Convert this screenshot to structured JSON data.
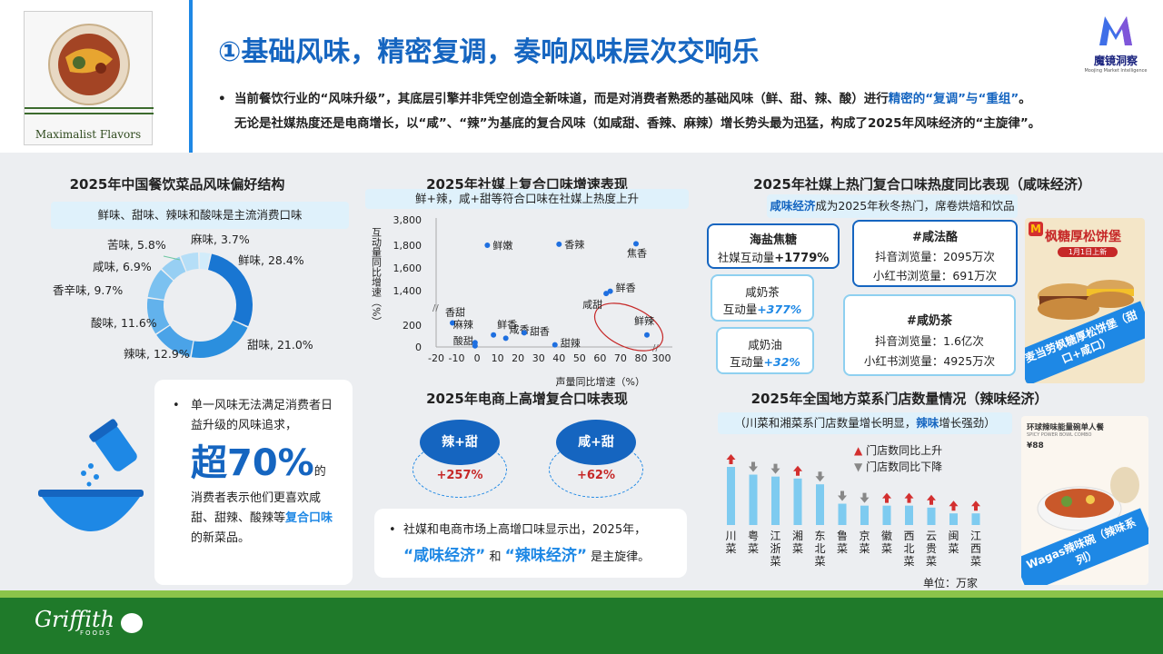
{
  "header": {
    "title": "①基础风味，精密复调，奏响风味层次交响乐",
    "logo_caption": "Maximalist Flavors",
    "brand_name": "魔镜洞察",
    "brand_sub": "Moojing Market Intelligence",
    "bullet_line1_pre": "当前餐饮行业的“风味升级”，其底层引擎并非凭空创造全新味道，而是对消费者熟悉的基础风味（鲜、甜、辣、酸）进行",
    "bullet_line1_hl": "精密的“复调”与“重组”",
    "bullet_line1_post": "。",
    "bullet_line2": "无论是社媒热度还是电商增长，以“咸”、“辣”为基底的复合风味（如咸甜、香辣、麻辣）增长势头最为迅猛，构成了2025年风味经济的“主旋律”。"
  },
  "colors": {
    "primary": "#1565c0",
    "accent": "#1e88e5",
    "light": "#dff1fb",
    "red": "#d32f2f",
    "gray": "#888888",
    "footer": "#1f7a2a"
  },
  "donut": {
    "title": "2025年中国餐饮菜品风味偏好结构",
    "note": "鲜味、甜味、辣味和酸味是主流消费口味"
  },
  "stat_box": {
    "text1": "单一风味无法满足消费者日益升级的风味追求，",
    "big": "超70%",
    "suffix": "的",
    "text2_pre": "消费者表示他们更喜欢咸甜、甜辣、酸辣等",
    "text2_hl": "复合口味",
    "text2_post": "的新菜品。"
  },
  "scatter": {
    "title": "2025年社媒上复合口味增速表现",
    "note": "鲜+辣，咸+甜等符合口味在社媒上热度上升",
    "ylabel": "互动量同比增速（%）",
    "xlabel": "声量同比增速（%）"
  },
  "ecommerce": {
    "title": "2025年电商上高增复合口味表现",
    "items": [
      {
        "label": "辣+甜",
        "value": "+257%"
      },
      {
        "label": "咸+甜",
        "value": "+62%"
      }
    ],
    "note_pre": "社媒和电商市场上高增口味显示出，2025年，",
    "note_hl1": "“咸味经济”",
    "note_mid": "和",
    "note_hl2": "“辣味经济”",
    "note_post": "是主旋律。"
  },
  "hot": {
    "title": "2025年社媒上热门复合口味热度同比表现（咸味经济）",
    "note_hl": "咸味经济",
    "note_rest": "成为2025年秋冬热门，席卷烘焙和饮品行业",
    "cards": [
      {
        "name": "海盐焦糖",
        "line": "社媒互动量",
        "value": "+1779%"
      },
      {
        "name": "咸奶茶",
        "line": "互动量",
        "value": "+377%"
      },
      {
        "name": "咸奶油",
        "line": "互动量",
        "value": "+32%"
      }
    ],
    "cheese": {
      "name": "#咸法酪",
      "l1": "抖音浏览量：2095万次",
      "l2": "小红书浏览量：691万次"
    },
    "tea": {
      "name": "#咸奶茶",
      "l1": "抖音浏览量：1.6亿次",
      "l2": "小红书浏览量：4925万次"
    },
    "promo": {
      "title": "枫糖厚松饼堡",
      "badge": "1月1日上新",
      "caption": "麦当劳枫糖厚松饼堡（甜口+咸口）"
    }
  },
  "stores": {
    "title": "2025年全国地方菜系门店数量情况（辣味经济）",
    "note_pre": "（川菜和湘菜系门店数量增长明显，",
    "note_hl": "辣味",
    "note_post": "增长强劲）",
    "legend_up": "门店数同比上升",
    "legend_down": "门店数同比下降",
    "unit": "单位：万家",
    "promo": {
      "top": "环球辣味能量碗单人餐",
      "top_en": "SPICY POWER BOWL COMBO",
      "price": "¥88",
      "caption": "Wagas辣味碗（辣味系列）"
    }
  },
  "footer": {
    "brand": "Griffith",
    "sub": "FOODS"
  },
  "chart_data": [
    {
      "type": "pie",
      "title": "2025年中国餐饮菜品风味偏好结构",
      "slices": [
        {
          "label": "鲜味",
          "value": 28.4,
          "text": "鲜味, 28.4%"
        },
        {
          "label": "甜味",
          "value": 21.0,
          "text": "甜味, 21.0%"
        },
        {
          "label": "辣味",
          "value": 12.9,
          "text": "辣味, 12.9%"
        },
        {
          "label": "酸味",
          "value": 11.6,
          "text": "酸味, 11.6%"
        },
        {
          "label": "香辛味",
          "value": 9.7,
          "text": "香辛味, 9.7%"
        },
        {
          "label": "咸味",
          "value": 6.9,
          "text": "咸味, 6.9%"
        },
        {
          "label": "苦味",
          "value": 5.8,
          "text": "苦味, 5.8%"
        },
        {
          "label": "麻味",
          "value": 3.7,
          "text": "麻味, 3.7%"
        }
      ]
    },
    {
      "type": "scatter",
      "title": "2025年社媒上复合口味增速表现",
      "xlabel": "声量同比增速（%）",
      "ylabel": "互动量同比增速（%）",
      "x_ticks": [
        "-20",
        "-10",
        "0",
        "10",
        "20",
        "30",
        "40",
        "50",
        "60",
        "70",
        "80",
        "300"
      ],
      "y_ticks": [
        "0",
        "200",
        "1,400",
        "1,600",
        "1,800",
        "3,800"
      ],
      "points": [
        {
          "label": "鲜嫩",
          "x": 5,
          "y": 1800
        },
        {
          "label": "香辣",
          "x": 40,
          "y": 1880
        },
        {
          "label": "焦香",
          "x": 75,
          "y": 1920
        },
        {
          "label": "鲜香",
          "x": 65,
          "y": 1380
        },
        {
          "label": "咸甜",
          "x": 63,
          "y": 1300
        },
        {
          "label": "鲜辣",
          "x": 80,
          "y": 110
        },
        {
          "label": "香甜",
          "x": -12,
          "y": 280
        },
        {
          "label": "麻辣",
          "x": -1,
          "y": 40
        },
        {
          "label": "鲜香",
          "x": 8,
          "y": 110
        },
        {
          "label": "酸甜",
          "x": -1,
          "y": 10
        },
        {
          "label": "咸香",
          "x": 14,
          "y": 80
        },
        {
          "label": "甜香",
          "x": 23,
          "y": 130
        },
        {
          "label": "甜辣",
          "x": 38,
          "y": 20
        }
      ]
    },
    {
      "type": "bar",
      "title": "2025年全国地方菜系门店数量情况（辣味经济）",
      "categories": [
        "川菜",
        "粤菜",
        "江浙菜",
        "湘菜",
        "东北菜",
        "鲁菜",
        "京菜",
        "徽菜",
        "西北菜",
        "云贵菜",
        "闽菜",
        "江西菜"
      ],
      "values": [
        30,
        26,
        25,
        24,
        21,
        11,
        10,
        10,
        10,
        9,
        6,
        6
      ],
      "trend": [
        "up",
        "down",
        "down",
        "up",
        "down",
        "down",
        "down",
        "up",
        "up",
        "up",
        "up",
        "up"
      ]
    }
  ]
}
